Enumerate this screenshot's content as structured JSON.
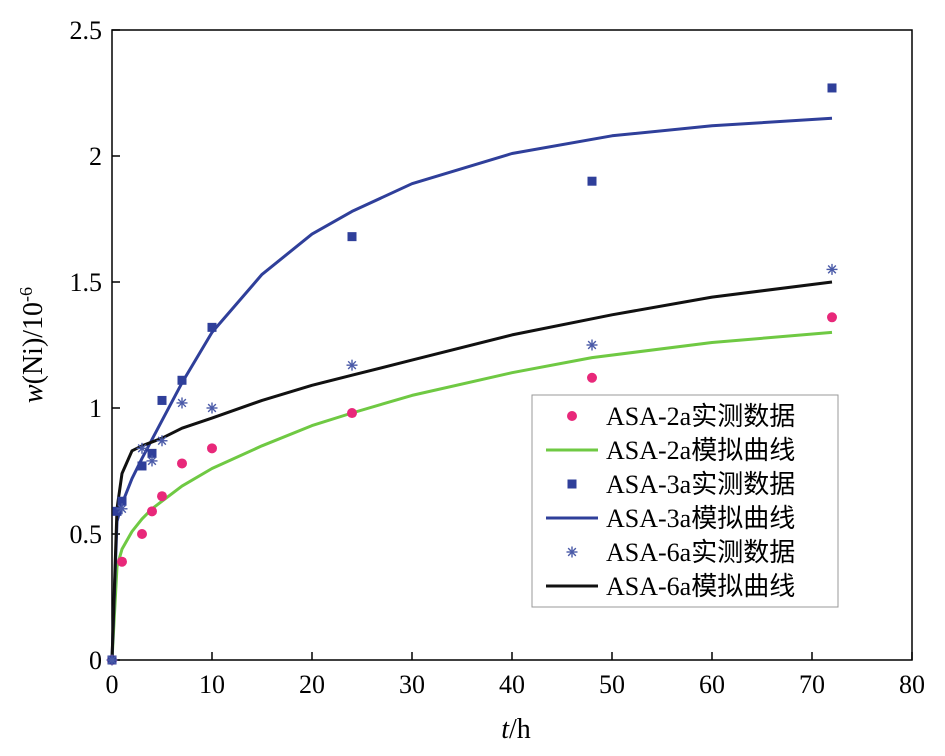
{
  "chart_data": {
    "type": "scatter",
    "title": "",
    "xlabel": {
      "italic": "t",
      "rest": "/h"
    },
    "ylabel": {
      "italic": "w",
      "rest": "(Ni)/10",
      "sup": "-6"
    },
    "xlim": [
      0,
      80
    ],
    "ylim": [
      0,
      2.5
    ],
    "x_ticks": [
      0,
      10,
      20,
      30,
      40,
      50,
      60,
      70,
      80
    ],
    "y_ticks": [
      0,
      0.5,
      1,
      1.5,
      2,
      2.5
    ],
    "x_tick_labels": [
      "0",
      "10",
      "20",
      "30",
      "40",
      "50",
      "60",
      "70",
      "80"
    ],
    "y_tick_labels": [
      "0",
      "0.5",
      "1",
      "1.5",
      "2",
      "2.5"
    ],
    "grid": false,
    "legend_position": "center-right",
    "series": [
      {
        "name": "ASA-2a实测数据",
        "kind": "scatter",
        "marker": "circle",
        "color": "#e8287a",
        "x": [
          0,
          1,
          3,
          4,
          5,
          7,
          10,
          24,
          48,
          72
        ],
        "y": [
          0,
          0.39,
          0.5,
          0.59,
          0.65,
          0.78,
          0.84,
          0.98,
          1.12,
          1.36
        ]
      },
      {
        "name": "ASA-2a模拟曲线",
        "kind": "line",
        "color": "#6fc943",
        "x": [
          0,
          0.5,
          1,
          2,
          3,
          4,
          5,
          7,
          10,
          15,
          20,
          24,
          30,
          40,
          48,
          60,
          72
        ],
        "y": [
          0,
          0.37,
          0.44,
          0.51,
          0.56,
          0.6,
          0.63,
          0.69,
          0.76,
          0.85,
          0.93,
          0.98,
          1.05,
          1.14,
          1.2,
          1.26,
          1.3
        ]
      },
      {
        "name": "ASA-3a实测数据",
        "kind": "scatter",
        "marker": "square",
        "color": "#2f3f9a",
        "x": [
          0,
          0.5,
          1,
          3,
          4,
          5,
          7,
          10,
          24,
          48,
          72
        ],
        "y": [
          0,
          0.59,
          0.63,
          0.77,
          0.82,
          1.03,
          1.11,
          1.32,
          1.68,
          1.9,
          2.27
        ]
      },
      {
        "name": "ASA-3a模拟曲线",
        "kind": "line",
        "color": "#2f3f9a",
        "x": [
          0,
          0.5,
          1,
          2,
          3,
          5,
          7,
          10,
          15,
          20,
          24,
          30,
          40,
          50,
          60,
          72
        ],
        "y": [
          0,
          0.55,
          0.62,
          0.72,
          0.8,
          0.95,
          1.1,
          1.3,
          1.53,
          1.69,
          1.78,
          1.89,
          2.01,
          2.08,
          2.12,
          2.15
        ]
      },
      {
        "name": "ASA-6a实测数据",
        "kind": "scatter",
        "marker": "asterisk",
        "color": "#4a5aa8",
        "x": [
          0,
          1,
          3,
          4,
          5,
          7,
          10,
          24,
          48,
          72
        ],
        "y": [
          0,
          0.6,
          0.84,
          0.79,
          0.87,
          1.02,
          1.0,
          1.17,
          1.25,
          1.55
        ]
      },
      {
        "name": "ASA-6a模拟曲线",
        "kind": "line",
        "color": "#111111",
        "x": [
          0,
          0.5,
          1,
          2,
          3,
          5,
          7,
          10,
          15,
          20,
          24,
          30,
          40,
          50,
          60,
          72
        ],
        "y": [
          0,
          0.6,
          0.74,
          0.83,
          0.85,
          0.88,
          0.92,
          0.96,
          1.03,
          1.09,
          1.13,
          1.19,
          1.29,
          1.37,
          1.44,
          1.5
        ]
      }
    ]
  }
}
